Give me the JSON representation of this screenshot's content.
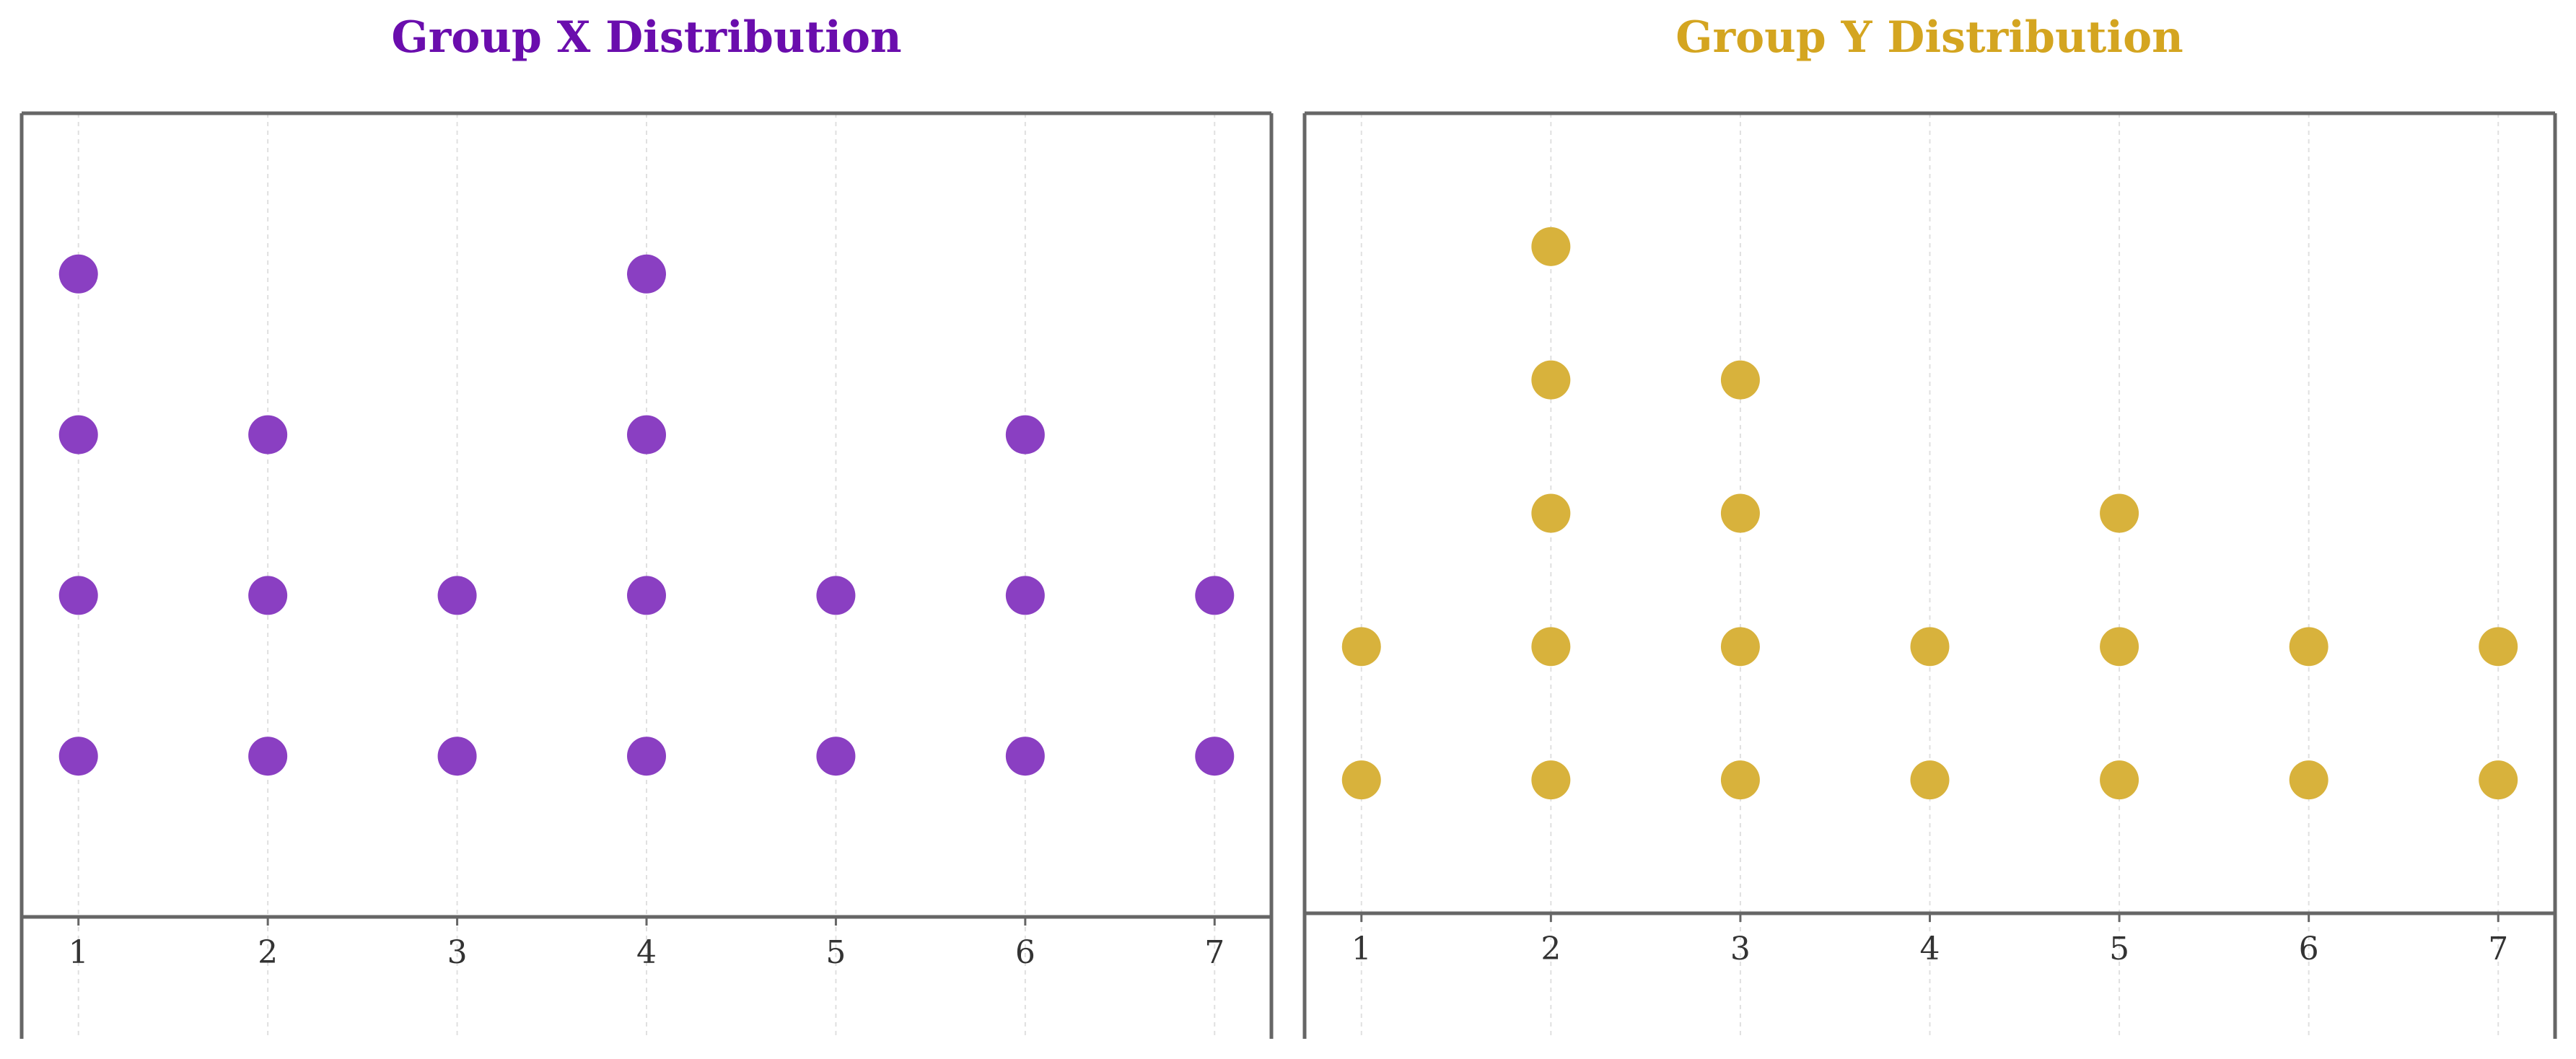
{
  "chart_data": [
    {
      "type": "scatter",
      "subtype": "dot-plot",
      "title": "Group X Distribution",
      "title_color": "#6a0dad",
      "marker_color": "#8a3fc2",
      "xlabel": "",
      "ylabel": "",
      "xlim": [
        0.7,
        7.3
      ],
      "ylim": [
        0,
        5
      ],
      "grid": "x-only",
      "x_ticks": [
        1,
        2,
        3,
        4,
        5,
        6,
        7
      ],
      "counts": [
        4,
        3,
        2,
        4,
        2,
        3,
        2
      ]
    },
    {
      "type": "scatter",
      "subtype": "dot-plot",
      "title": "Group Y Distribution",
      "title_color": "#d4a520",
      "marker_color": "#d8b23c",
      "xlabel": "",
      "ylabel": "",
      "xlim": [
        0.7,
        7.3
      ],
      "ylim": [
        0,
        6
      ],
      "grid": "x-only",
      "x_ticks": [
        1,
        2,
        3,
        4,
        5,
        6,
        7
      ],
      "counts": [
        2,
        5,
        4,
        2,
        3,
        2,
        2
      ]
    }
  ]
}
